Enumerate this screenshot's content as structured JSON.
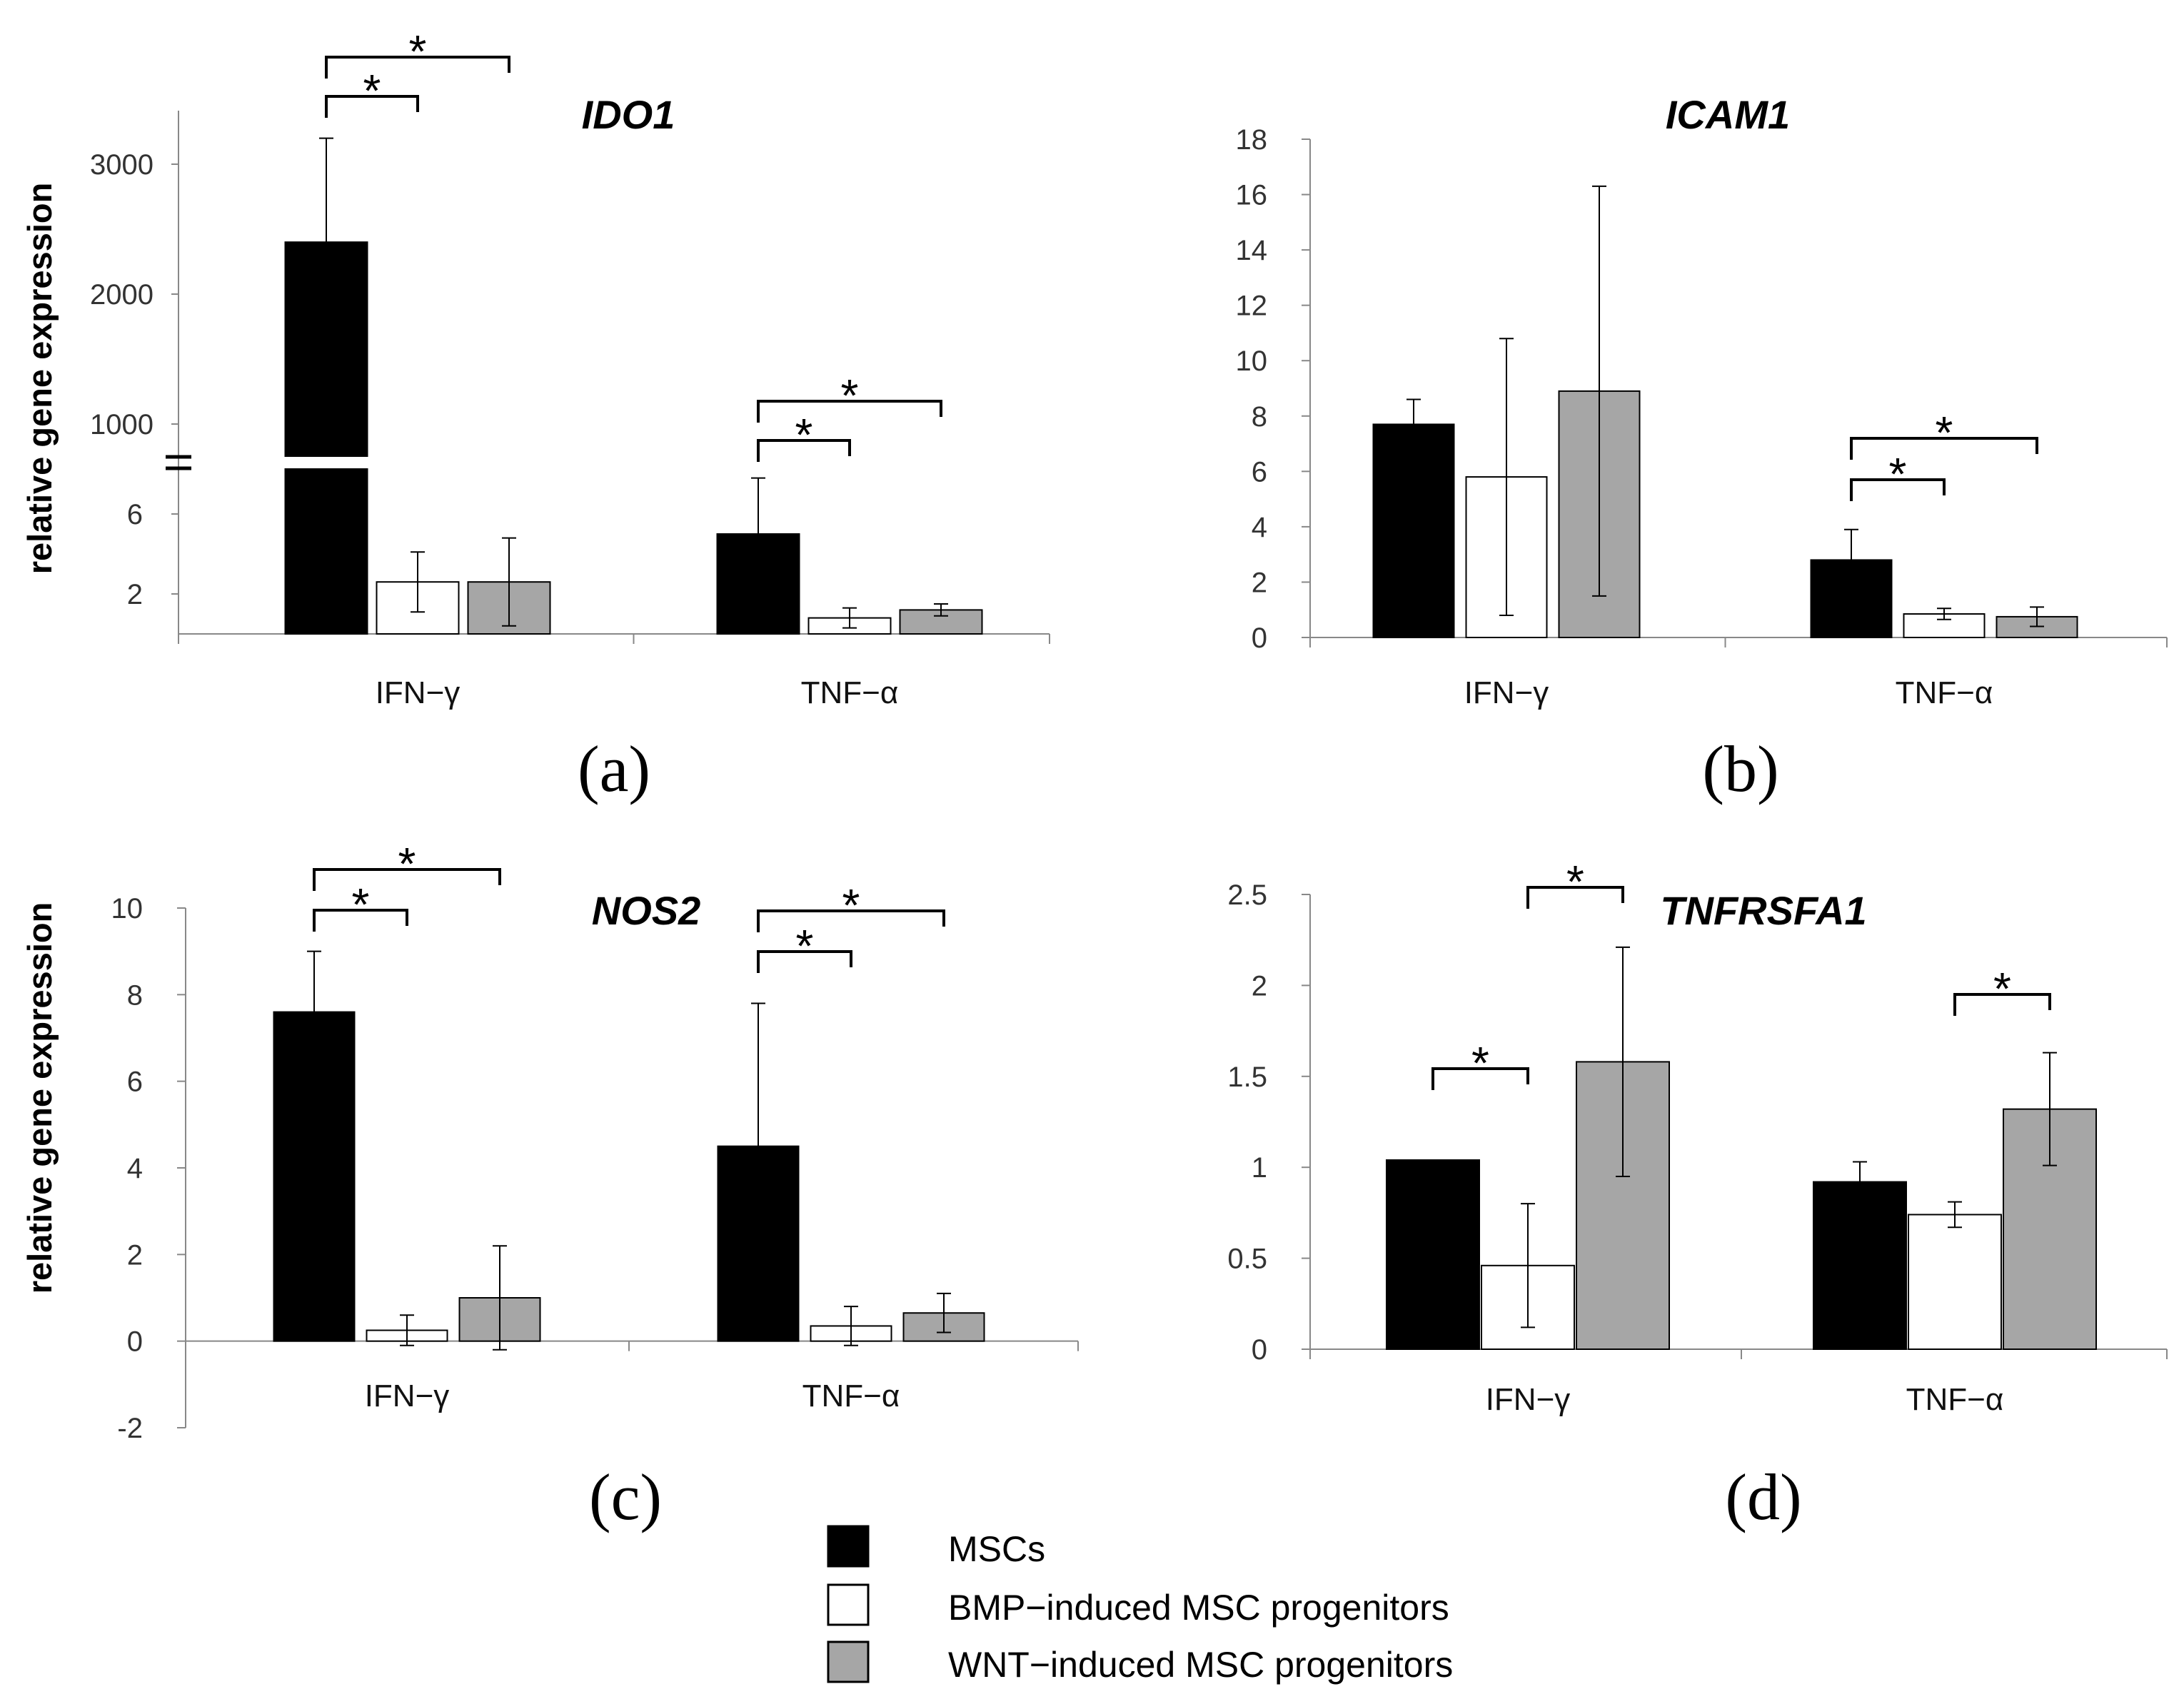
{
  "colors": {
    "MSCs": "#000000",
    "BMP-induced MSC progenitors": "#ffffff",
    "WNT-induced MSC progenitors": "#a6a6a6"
  },
  "legend": {
    "items": [
      {
        "label": "MSCs",
        "color": "#000000"
      },
      {
        "label": "BMP−induced MSC progenitors",
        "color": "#ffffff"
      },
      {
        "label": "WNT−induced MSC progenitors",
        "color": "#a6a6a6"
      }
    ]
  },
  "ylabel_left": "relative gene expression",
  "chart_data": [
    {
      "id": "a",
      "type": "bar",
      "title": "IDO1",
      "panel_label": "(a)",
      "categories": [
        "IFN−γ",
        "TNF−α"
      ],
      "ylim": [
        0,
        3500
      ],
      "axis_break": true,
      "upper_ticks": [
        1000,
        2000,
        3000
      ],
      "lower_ticks": [
        2,
        6
      ],
      "series": [
        {
          "name": "MSCs",
          "values": [
            2400,
            5.0
          ],
          "errors": [
            800,
            2.8
          ]
        },
        {
          "name": "BMP−induced MSC progenitors",
          "values": [
            2.6,
            0.8
          ],
          "errors": [
            1.5,
            0.5
          ]
        },
        {
          "name": "WNT−induced MSC progenitors",
          "values": [
            2.6,
            1.2
          ],
          "errors": [
            2.2,
            0.3
          ]
        }
      ],
      "significance": [
        {
          "category": "IFN−γ",
          "from": "MSCs",
          "to": "BMP−induced MSC progenitors",
          "label": "*"
        },
        {
          "category": "IFN−γ",
          "from": "MSCs",
          "to": "WNT−induced MSC progenitors",
          "label": "*"
        },
        {
          "category": "TNF−α",
          "from": "MSCs",
          "to": "BMP−induced MSC progenitors",
          "label": "*"
        },
        {
          "category": "TNF−α",
          "from": "MSCs",
          "to": "WNT−induced MSC progenitors",
          "label": "*"
        }
      ]
    },
    {
      "id": "b",
      "type": "bar",
      "title": "ICAM1",
      "panel_label": "(b)",
      "categories": [
        "IFN−γ",
        "TNF−α"
      ],
      "ylim": [
        0,
        18
      ],
      "ticks": [
        0,
        2,
        4,
        6,
        8,
        10,
        12,
        14,
        16,
        18
      ],
      "series": [
        {
          "name": "MSCs",
          "values": [
            7.7,
            2.8
          ],
          "errors": [
            0.9,
            1.1
          ]
        },
        {
          "name": "BMP−induced MSC progenitors",
          "values": [
            5.8,
            0.85
          ],
          "errors": [
            5.0,
            0.2
          ]
        },
        {
          "name": "WNT−induced MSC progenitors",
          "values": [
            8.9,
            0.75
          ],
          "errors": [
            7.4,
            0.35
          ]
        }
      ],
      "significance": [
        {
          "category": "TNF−α",
          "from": "MSCs",
          "to": "BMP−induced MSC progenitors",
          "label": "*"
        },
        {
          "category": "TNF−α",
          "from": "MSCs",
          "to": "WNT−induced MSC progenitors",
          "label": "*"
        }
      ]
    },
    {
      "id": "c",
      "type": "bar",
      "title": "NOS2",
      "panel_label": "(c)",
      "categories": [
        "IFN−γ",
        "TNF−α"
      ],
      "ylim": [
        -2,
        10
      ],
      "ticks": [
        -2,
        0,
        2,
        4,
        6,
        8,
        10
      ],
      "series": [
        {
          "name": "MSCs",
          "values": [
            7.6,
            4.5
          ],
          "errors": [
            1.4,
            3.3
          ]
        },
        {
          "name": "BMP−induced MSC progenitors",
          "values": [
            0.25,
            0.35
          ],
          "errors": [
            0.35,
            0.45
          ]
        },
        {
          "name": "WNT−induced MSC progenitors",
          "values": [
            1.0,
            0.65
          ],
          "errors": [
            1.2,
            0.45
          ]
        }
      ],
      "significance": [
        {
          "category": "IFN−γ",
          "from": "MSCs",
          "to": "BMP−induced MSC progenitors",
          "label": "*"
        },
        {
          "category": "IFN−γ",
          "from": "MSCs",
          "to": "WNT−induced MSC progenitors",
          "label": "*"
        },
        {
          "category": "TNF−α",
          "from": "MSCs",
          "to": "BMP−induced MSC progenitors",
          "label": "*"
        },
        {
          "category": "TNF−α",
          "from": "MSCs",
          "to": "WNT−induced MSC progenitors",
          "label": "*"
        }
      ]
    },
    {
      "id": "d",
      "type": "bar",
      "title": "TNFRSFA1",
      "panel_label": "(d)",
      "categories": [
        "IFN−γ",
        "TNF−α"
      ],
      "ylim": [
        0,
        2.5
      ],
      "ticks": [
        0,
        0.5,
        1,
        1.5,
        2,
        2.5
      ],
      "tick_labels": [
        "0",
        "0.5",
        "1",
        "1.5",
        "2",
        "2.5"
      ],
      "series": [
        {
          "name": "MSCs",
          "values": [
            1.04,
            0.92
          ],
          "errors": [
            0.0,
            0.11
          ]
        },
        {
          "name": "BMP−induced MSC progenitors",
          "values": [
            0.46,
            0.74
          ],
          "errors": [
            0.34,
            0.07
          ]
        },
        {
          "name": "WNT−induced MSC progenitors",
          "values": [
            1.58,
            1.32
          ],
          "errors": [
            0.63,
            0.31
          ]
        }
      ],
      "significance": [
        {
          "category": "IFN−γ",
          "from": "MSCs",
          "to": "BMP−induced MSC progenitors",
          "label": "*"
        },
        {
          "category": "IFN−γ",
          "from": "BMP−induced MSC progenitors",
          "to": "WNT−induced MSC progenitors",
          "label": "*"
        },
        {
          "category": "TNF−α",
          "from": "BMP−induced MSC progenitors",
          "to": "WNT−induced MSC progenitors",
          "label": "*"
        }
      ]
    }
  ]
}
